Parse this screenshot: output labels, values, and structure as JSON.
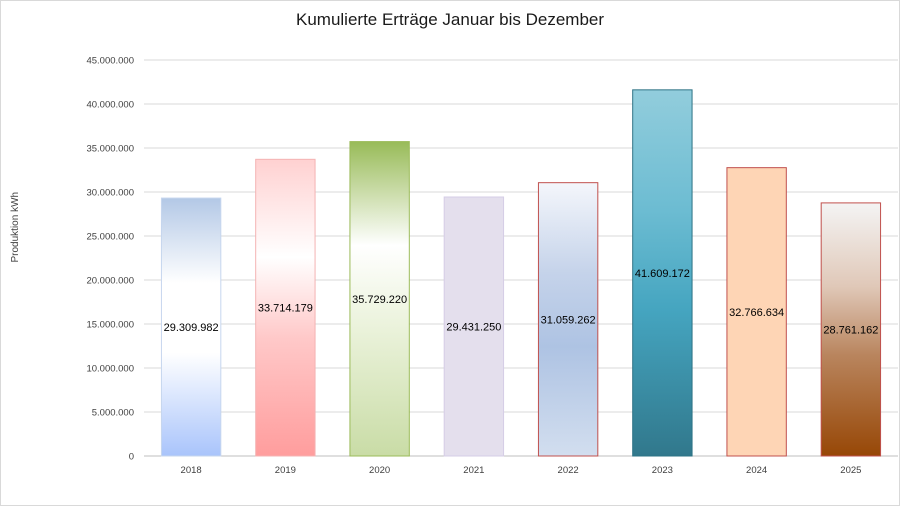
{
  "chart_data": {
    "type": "bar",
    "title": "Kumulierte Erträge Januar bis Dezember",
    "ylabel": "Produktion kWh",
    "xlabel": "",
    "categories": [
      "2018",
      "2019",
      "2020",
      "2021",
      "2022",
      "2023",
      "2024",
      "2025"
    ],
    "values": [
      29309982,
      33714179,
      35729220,
      29431250,
      31059262,
      41609172,
      32766634,
      28761162
    ],
    "value_labels": [
      "29.309.982",
      "33.714.179",
      "35.729.220",
      "29.431.250",
      "31.059.262",
      "41.609.172",
      "32.766.634",
      "28.761.162"
    ],
    "ylim": [
      0,
      45000000
    ],
    "yticks": [
      0,
      5000000,
      10000000,
      15000000,
      20000000,
      25000000,
      30000000,
      35000000,
      40000000,
      45000000
    ],
    "ytick_labels": [
      "0",
      "5.000.000",
      "10.000.000",
      "15.000.000",
      "20.000.000",
      "25.000.000",
      "30.000.000",
      "35.000.000",
      "40.000.000",
      "45.000.000"
    ],
    "grid": true,
    "legend": "none",
    "bar_styles": [
      {
        "stops": [
          "#b3c8e6",
          "#ffffff",
          "#ffffff",
          "#a9c4fb"
        ],
        "border": "#c6d6ee"
      },
      {
        "stops": [
          "#ffd1d1",
          "#ffffff",
          "#ffc9c9",
          "#ff9d9d"
        ],
        "border": "#f4b3b3"
      },
      {
        "stops": [
          "#98bb58",
          "#ffffff",
          "#eaf2da",
          "#c9dca6"
        ],
        "border": "#9bbb59"
      },
      {
        "stops": [
          "#e4dfed",
          "#e4dfed",
          "#e4dfed",
          "#e4dfed"
        ],
        "border": "#d5cde6"
      },
      {
        "stops": [
          "#f4f6fb",
          "#c5d3ea",
          "#aec3e3",
          "#d2deef"
        ],
        "border": "#c0504d"
      },
      {
        "stops": [
          "#92cddc",
          "#6cbcd2",
          "#45a5c0",
          "#31788c"
        ],
        "border": "#2d7385"
      },
      {
        "stops": [
          "#fed5b5",
          "#fed5b5",
          "#fed5b5",
          "#fed5b5"
        ],
        "border": "#c0504d"
      },
      {
        "stops": [
          "#f4f4f4",
          "#e0c8b8",
          "#b9855e",
          "#974706"
        ],
        "border": "#c0504d"
      }
    ]
  }
}
